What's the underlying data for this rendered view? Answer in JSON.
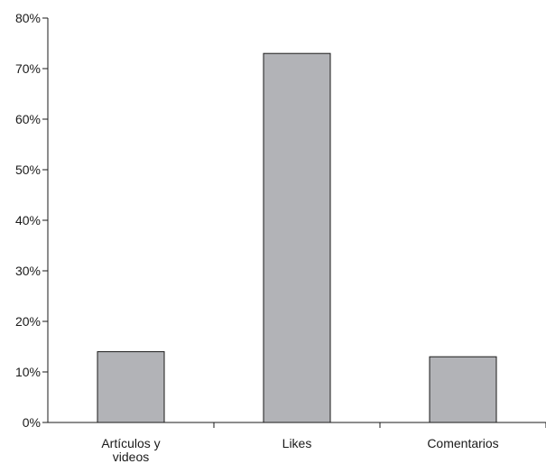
{
  "chart_data": {
    "type": "bar",
    "title": "",
    "xlabel": "",
    "ylabel": "",
    "categories": [
      [
        "Artículos y",
        "videos"
      ],
      [
        "Likes"
      ],
      [
        "Comentarios"
      ]
    ],
    "values": [
      14,
      73,
      13
    ],
    "y_unit": "%",
    "ylim": [
      0,
      80
    ],
    "yticks": [
      "0%",
      "10%",
      "20%",
      "30%",
      "40%",
      "50%",
      "60%",
      "70%",
      "80%"
    ],
    "grid": false,
    "legend": "none",
    "colors": {
      "bar_fill": "#b2b3b7",
      "bar_stroke": "#1a1a1a",
      "axis": "#1a1a1a",
      "text": "#1a1a1a"
    }
  }
}
